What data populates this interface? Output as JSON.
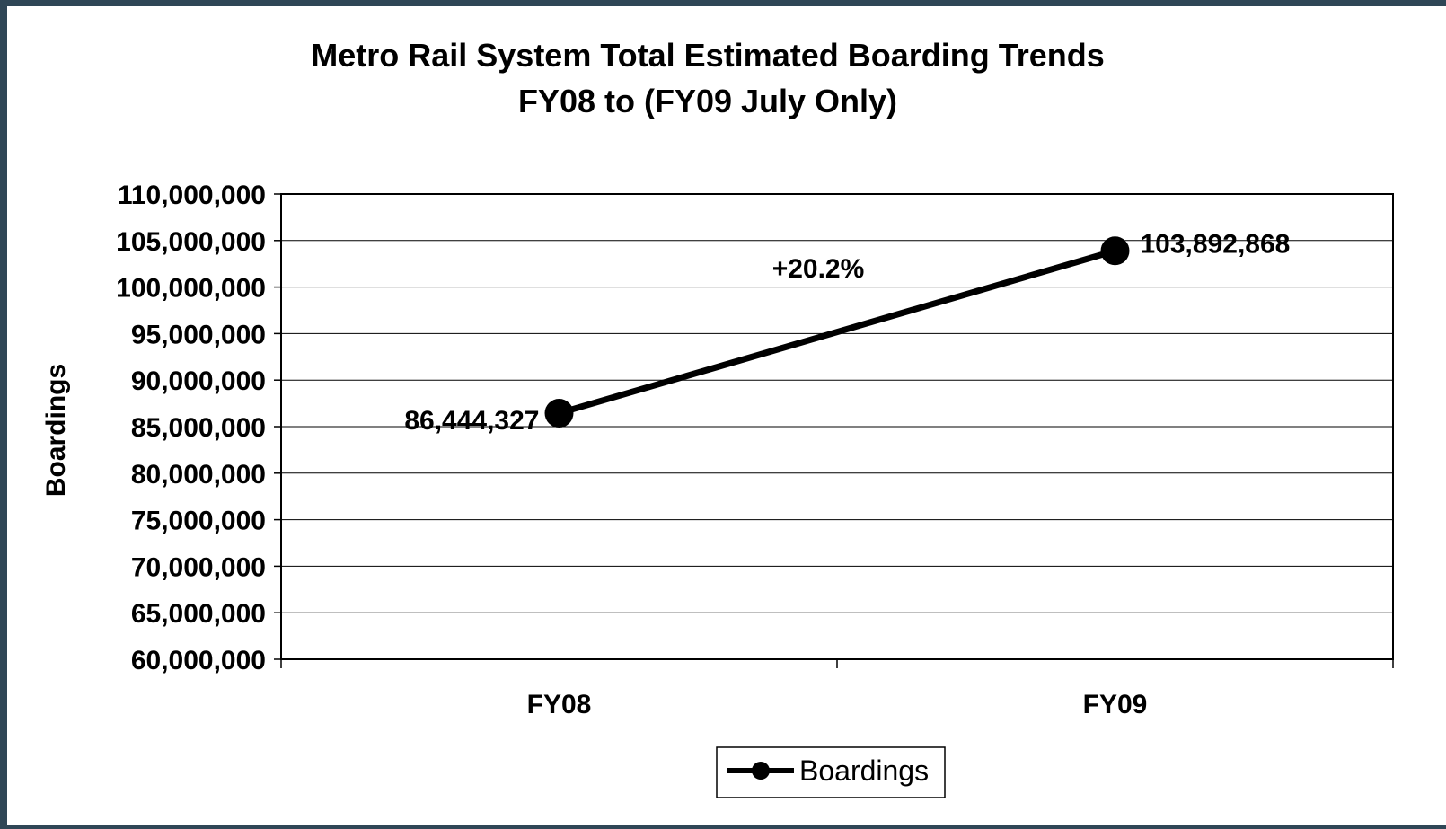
{
  "chart_data": {
    "type": "line",
    "title": "Metro Rail System Total Estimated Boarding Trends",
    "subtitle": "FY08 to (FY09 July Only)",
    "xlabel": "",
    "ylabel": "Boardings",
    "categories": [
      "FY08",
      "FY09"
    ],
    "series": [
      {
        "name": "Boardings",
        "values": [
          86444327,
          103892868
        ],
        "color": "#000000"
      }
    ],
    "data_labels": [
      "86,444,327",
      "103,892,868"
    ],
    "annotation": "+20.2%",
    "ylim": [
      60000000,
      110000000
    ],
    "y_tick_step": 5000000,
    "grid": true,
    "legend": "bottom-center"
  }
}
